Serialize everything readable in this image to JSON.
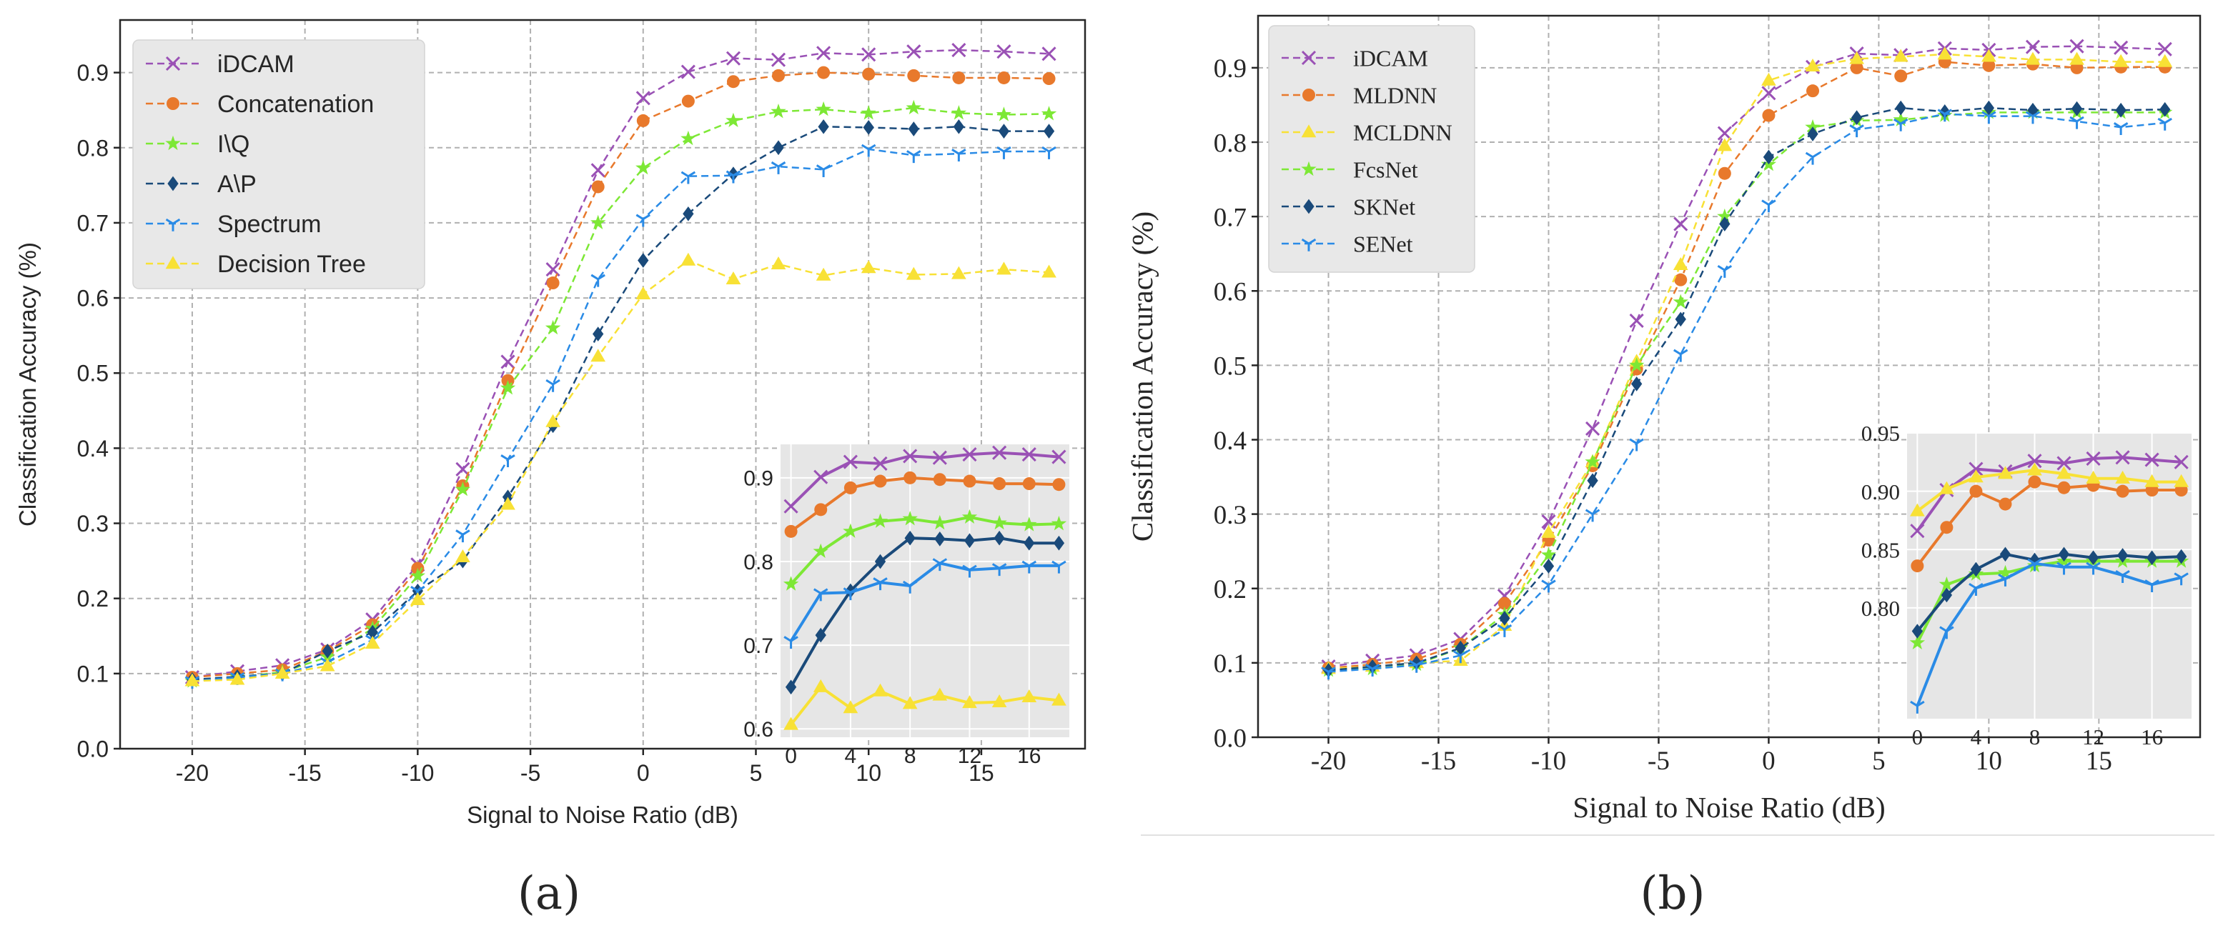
{
  "colors": {
    "axis": "#262626",
    "grid": "#b0b0b0",
    "inset_bg": "#e6e6e6",
    "legend_bg": "#e8e8e8"
  },
  "chart_data": [
    {
      "id": "a",
      "type": "line",
      "panel_label": "(a)",
      "title": "",
      "xlabel": "Signal to Noise Ratio (dB)",
      "ylabel": "Classification Accuracy (%)",
      "xlim": [
        -23.2,
        19.6
      ],
      "ylim": [
        0.0,
        0.97
      ],
      "xticks": [
        -20,
        -15,
        -10,
        -5,
        0,
        5,
        10,
        15
      ],
      "xtick_labels": [
        "-20",
        "-15",
        "-10",
        "-5",
        "0",
        "5",
        "10",
        "15"
      ],
      "yticks": [
        0.0,
        0.1,
        0.2,
        0.3,
        0.4,
        0.5,
        0.6,
        0.7,
        0.8,
        0.9
      ],
      "ytick_labels": [
        "0.0",
        "0.1",
        "0.2",
        "0.3",
        "0.4",
        "0.5",
        "0.6",
        "0.7",
        "0.8",
        "0.9"
      ],
      "grid": true,
      "legend": "top-left",
      "x": [
        -20,
        -18,
        -16,
        -14,
        -12,
        -10,
        -8,
        -6,
        -4,
        -2,
        0,
        2,
        4,
        6,
        8,
        10,
        12,
        14,
        16,
        18
      ],
      "series": [
        {
          "name": "iDCAM",
          "color": "#9a51b5",
          "marker": "x",
          "values": [
            0.095,
            0.103,
            0.111,
            0.132,
            0.172,
            0.245,
            0.372,
            0.515,
            0.638,
            0.77,
            0.866,
            0.901,
            0.919,
            0.917,
            0.926,
            0.924,
            0.928,
            0.93,
            0.928,
            0.925
          ]
        },
        {
          "name": "Concatenation",
          "color": "#e8792c",
          "marker": "o",
          "values": [
            0.095,
            0.1,
            0.105,
            0.13,
            0.165,
            0.24,
            0.35,
            0.49,
            0.62,
            0.748,
            0.836,
            0.862,
            0.888,
            0.896,
            0.9,
            0.898,
            0.896,
            0.893,
            0.893,
            0.892
          ]
        },
        {
          "name": "I\\Q",
          "color": "#7de835",
          "marker": "star",
          "values": [
            0.09,
            0.095,
            0.102,
            0.122,
            0.16,
            0.23,
            0.345,
            0.48,
            0.56,
            0.7,
            0.773,
            0.812,
            0.836,
            0.848,
            0.851,
            0.846,
            0.853,
            0.846,
            0.844,
            0.845
          ]
        },
        {
          "name": "A\\P",
          "color": "#1a4a7a",
          "marker": "D",
          "values": [
            0.092,
            0.096,
            0.1,
            0.13,
            0.155,
            0.21,
            0.25,
            0.335,
            0.43,
            0.552,
            0.65,
            0.712,
            0.765,
            0.8,
            0.828,
            0.827,
            0.825,
            0.828,
            0.822,
            0.822
          ]
        },
        {
          "name": "Spectrum",
          "color": "#2a8be6",
          "marker": "tri",
          "values": [
            0.09,
            0.095,
            0.1,
            0.115,
            0.145,
            0.21,
            0.285,
            0.385,
            0.485,
            0.625,
            0.705,
            0.762,
            0.763,
            0.775,
            0.771,
            0.798,
            0.79,
            0.792,
            0.795,
            0.795
          ]
        },
        {
          "name": "Decision Tree",
          "color": "#f8e135",
          "marker": "^",
          "values": [
            0.09,
            0.092,
            0.1,
            0.11,
            0.14,
            0.198,
            0.255,
            0.325,
            0.435,
            0.522,
            0.605,
            0.65,
            0.625,
            0.645,
            0.63,
            0.64,
            0.631,
            0.632,
            0.638,
            0.634
          ]
        }
      ],
      "inset": {
        "x": [
          0,
          2,
          4,
          6,
          8,
          10,
          12,
          14,
          16,
          18
        ],
        "xlim": [
          -0.7,
          18.7
        ],
        "ylim": [
          0.59,
          0.94
        ],
        "xticks": [
          0,
          4,
          8,
          12,
          16
        ],
        "xtick_labels": [
          "0",
          "4",
          "8",
          "12",
          "16"
        ],
        "yticks": [
          0.6,
          0.7,
          0.8,
          0.9
        ],
        "ytick_labels": [
          "0.6",
          "0.7",
          "0.8",
          "0.9"
        ]
      }
    },
    {
      "id": "b",
      "type": "line",
      "panel_label": "(b)",
      "title": "",
      "xlabel": "Signal to Noise Ratio (dB)",
      "ylabel": "Classification Accuracy (%)",
      "xlim": [
        -23.2,
        19.6
      ],
      "ylim": [
        0.0,
        0.97
      ],
      "xticks": [
        -20,
        -15,
        -10,
        -5,
        0,
        5,
        10,
        15
      ],
      "xtick_labels": [
        "-20",
        "-15",
        "-10",
        "-5",
        "0",
        "5",
        "10",
        "15"
      ],
      "yticks": [
        0.0,
        0.1,
        0.2,
        0.3,
        0.4,
        0.5,
        0.6,
        0.7,
        0.8,
        0.9
      ],
      "ytick_labels": [
        "0.0",
        "0.1",
        "0.2",
        "0.3",
        "0.4",
        "0.5",
        "0.6",
        "0.7",
        "0.8",
        "0.9"
      ],
      "grid": true,
      "legend": "top-left",
      "x": [
        -20,
        -18,
        -16,
        -14,
        -12,
        -10,
        -8,
        -6,
        -4,
        -2,
        0,
        2,
        4,
        6,
        8,
        10,
        12,
        14,
        16,
        18
      ],
      "series": [
        {
          "name": "iDCAM",
          "color": "#9a51b5",
          "marker": "x",
          "values": [
            0.095,
            0.103,
            0.11,
            0.132,
            0.19,
            0.29,
            0.415,
            0.56,
            0.69,
            0.812,
            0.866,
            0.901,
            0.919,
            0.917,
            0.926,
            0.924,
            0.928,
            0.929,
            0.927,
            0.925
          ]
        },
        {
          "name": "MLDNN",
          "color": "#e8792c",
          "marker": "o",
          "values": [
            0.093,
            0.098,
            0.105,
            0.125,
            0.18,
            0.265,
            0.365,
            0.495,
            0.615,
            0.758,
            0.836,
            0.869,
            0.9,
            0.889,
            0.908,
            0.903,
            0.905,
            0.9,
            0.901,
            0.901
          ]
        },
        {
          "name": "MCLDNN",
          "color": "#f8e135",
          "marker": "^",
          "values": [
            0.092,
            0.095,
            0.1,
            0.103,
            0.15,
            0.275,
            0.37,
            0.505,
            0.635,
            0.795,
            0.883,
            0.902,
            0.912,
            0.915,
            0.918,
            0.915,
            0.911,
            0.911,
            0.908,
            0.908
          ]
        },
        {
          "name": "FcsNet",
          "color": "#7de835",
          "marker": "star",
          "values": [
            0.09,
            0.092,
            0.098,
            0.12,
            0.165,
            0.245,
            0.37,
            0.5,
            0.585,
            0.7,
            0.77,
            0.82,
            0.829,
            0.83,
            0.836,
            0.84,
            0.84,
            0.84,
            0.84,
            0.84
          ]
        },
        {
          "name": "SKNet",
          "color": "#1a4a7a",
          "marker": "D",
          "values": [
            0.09,
            0.095,
            0.1,
            0.12,
            0.16,
            0.23,
            0.345,
            0.475,
            0.562,
            0.69,
            0.78,
            0.811,
            0.833,
            0.846,
            0.841,
            0.846,
            0.843,
            0.845,
            0.843,
            0.844
          ]
        },
        {
          "name": "SENet",
          "color": "#2a8be6",
          "marker": "tri",
          "values": [
            0.088,
            0.092,
            0.097,
            0.11,
            0.145,
            0.205,
            0.3,
            0.395,
            0.515,
            0.628,
            0.716,
            0.78,
            0.817,
            0.825,
            0.838,
            0.835,
            0.835,
            0.828,
            0.82,
            0.826
          ]
        }
      ],
      "inset": {
        "x": [
          0,
          2,
          4,
          6,
          8,
          10,
          12,
          14,
          16,
          18
        ],
        "xlim": [
          -0.7,
          18.7
        ],
        "ylim": [
          0.705,
          0.95
        ],
        "xticks": [
          0,
          4,
          8,
          12,
          16
        ],
        "xtick_labels": [
          "0",
          "4",
          "8",
          "12",
          "16"
        ],
        "yticks": [
          0.8,
          0.85,
          0.9,
          0.95
        ],
        "ytick_labels": [
          "0.80",
          "0.85",
          "0.90",
          "0.95"
        ]
      }
    }
  ]
}
